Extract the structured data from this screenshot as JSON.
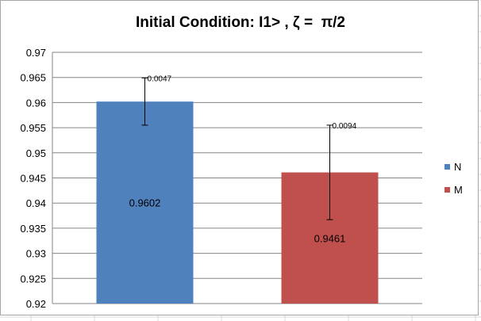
{
  "chart_data": {
    "type": "bar",
    "title": "Initial Condition: I1> , ζ =  π/2",
    "categories": [
      "N",
      "M"
    ],
    "series": [
      {
        "name": "N",
        "value": 0.9602,
        "value_label": "0.9602",
        "error": 0.0047,
        "error_label": "0.0047",
        "color": "#4f81bd"
      },
      {
        "name": "M",
        "value": 0.9461,
        "value_label": "0.9461",
        "error": 0.0094,
        "error_label": "0.0094",
        "color": "#c0504d"
      }
    ],
    "ylim": [
      0.92,
      0.97
    ],
    "yticks": [
      "0.92",
      "0.925",
      "0.93",
      "0.935",
      "0.94",
      "0.945",
      "0.95",
      "0.955",
      "0.96",
      "0.965",
      "0.97"
    ],
    "grid": true,
    "legend_position": "right",
    "gridline_color": "#868686"
  }
}
